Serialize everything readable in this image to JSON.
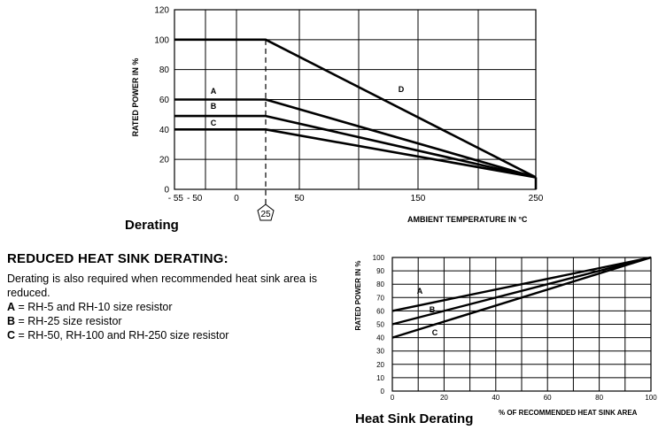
{
  "chart_data": [
    {
      "type": "line",
      "title": "Derating",
      "xlabel": "AMBIENT TEMPERATURE IN °C",
      "ylabel": "RATED POWER IN %",
      "xlim": [
        -55,
        250
      ],
      "ylim": [
        0,
        120
      ],
      "x_ticks": [
        -55,
        -50,
        0,
        50,
        150,
        250
      ],
      "x_tick_labels": [
        "- 55",
        "- 50",
        "0",
        "50",
        "150",
        "250"
      ],
      "y_ticks": [
        0,
        20,
        40,
        60,
        80,
        100,
        120
      ],
      "marker_value": 25,
      "marker_label": "25",
      "series": [
        {
          "name": "D",
          "label": "D",
          "x": [
            -55,
            25,
            250
          ],
          "y": [
            100,
            100,
            8
          ]
        },
        {
          "name": "A",
          "label": "A",
          "x": [
            -55,
            25,
            250
          ],
          "y": [
            60,
            60,
            8
          ]
        },
        {
          "name": "B",
          "label": "B",
          "x": [
            -55,
            25,
            250
          ],
          "y": [
            49,
            49,
            8
          ]
        },
        {
          "name": "C",
          "label": "C",
          "x": [
            -55,
            25,
            250
          ],
          "y": [
            40,
            40,
            8
          ]
        }
      ],
      "end_drop": {
        "x": 250,
        "from": 8,
        "to": 0
      },
      "grid": true
    },
    {
      "type": "line",
      "title": "Heat Sink Derating",
      "xlabel": "% OF RECOMMENDED HEAT SINK AREA",
      "ylabel": "RATED POWER IN %",
      "xlim": [
        0,
        100
      ],
      "ylim": [
        0,
        100
      ],
      "x_ticks": [
        0,
        20,
        40,
        60,
        80,
        100
      ],
      "y_ticks": [
        0,
        10,
        20,
        30,
        40,
        50,
        60,
        70,
        80,
        90,
        100
      ],
      "series": [
        {
          "name": "A",
          "label": "A",
          "x": [
            0,
            100
          ],
          "y": [
            60,
            100
          ]
        },
        {
          "name": "B",
          "label": "B",
          "x": [
            0,
            100
          ],
          "y": [
            50,
            100
          ]
        },
        {
          "name": "C",
          "label": "C",
          "x": [
            0,
            100
          ],
          "y": [
            40,
            100
          ]
        }
      ],
      "grid": true
    }
  ],
  "text": {
    "heading": "REDUCED HEAT SINK DERATING:",
    "body": "Derating is also required when recommended heat sink area is reduced.",
    "items": [
      {
        "key": "A",
        "sep": " = ",
        "value": "RH-5 and RH-10 size resistor"
      },
      {
        "key": "B",
        "sep": " = ",
        "value": "RH-25 size resistor"
      },
      {
        "key": "C",
        "sep": " = ",
        "value": "RH-50, RH-100 and RH-250 size resistor"
      }
    ]
  }
}
